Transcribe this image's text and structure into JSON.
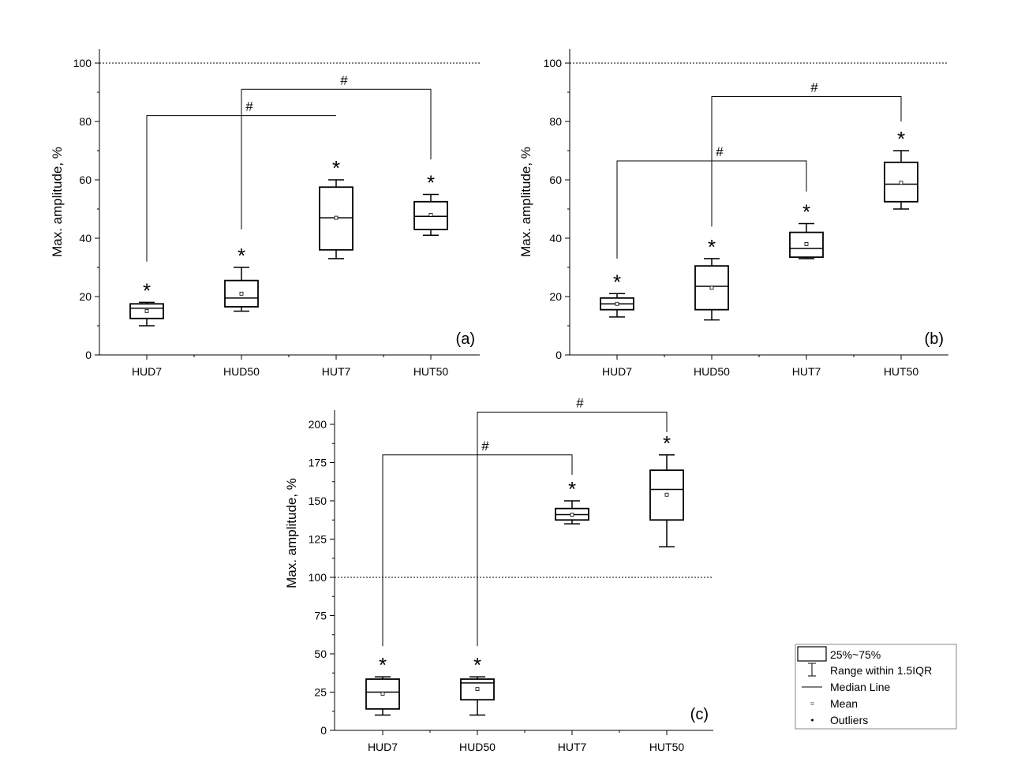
{
  "chart_data": [
    {
      "type": "box",
      "panel_label": "(a)",
      "ylabel": "Max. amplitude, %",
      "ylim": [
        0,
        100
      ],
      "yticks": [
        0,
        20,
        40,
        60,
        80,
        100
      ],
      "reference_line": 100,
      "categories": [
        "HUD7",
        "HUD50",
        "HUT7",
        "HUT50"
      ],
      "boxes": [
        {
          "category": "HUD7",
          "min": 10,
          "q1": 12.5,
          "median": 16,
          "q3": 17.5,
          "max": 18,
          "mean": 15,
          "star": "*"
        },
        {
          "category": "HUD50",
          "min": 15,
          "q1": 16.5,
          "median": 19.5,
          "q3": 25.5,
          "max": 30,
          "mean": 21,
          "star": "*"
        },
        {
          "category": "HUT7",
          "min": 33,
          "q1": 36,
          "median": 47,
          "q3": 57.5,
          "max": 60,
          "mean": 47,
          "star": "*"
        },
        {
          "category": "HUT50",
          "min": 41,
          "q1": 43,
          "median": 47.5,
          "q3": 52.5,
          "max": 55,
          "mean": 48,
          "star": "*"
        }
      ],
      "brackets": [
        {
          "from": "HUD7",
          "to": "HUT7",
          "y": 82,
          "from_y": 32,
          "to_y": 82,
          "label": "#"
        },
        {
          "from": "HUD50",
          "to": "HUT50",
          "y": 91,
          "from_y": 43,
          "to_y": 67,
          "label": "#"
        }
      ]
    },
    {
      "type": "box",
      "panel_label": "(b)",
      "ylabel": "Max. amplitude, %",
      "ylim": [
        0,
        100
      ],
      "yticks": [
        0,
        20,
        40,
        60,
        80,
        100
      ],
      "reference_line": 100,
      "categories": [
        "HUD7",
        "HUD50",
        "HUT7",
        "HUT50"
      ],
      "boxes": [
        {
          "category": "HUD7",
          "min": 13,
          "q1": 15.5,
          "median": 17.5,
          "q3": 19.5,
          "max": 21,
          "mean": 17.5,
          "star": "*"
        },
        {
          "category": "HUD50",
          "min": 12,
          "q1": 15.5,
          "median": 23.5,
          "q3": 30.5,
          "max": 33,
          "mean": 23,
          "star": "*"
        },
        {
          "category": "HUT7",
          "min": 33,
          "q1": 33.5,
          "median": 36.5,
          "q3": 42,
          "max": 45,
          "mean": 38,
          "star": "*"
        },
        {
          "category": "HUT50",
          "min": 50,
          "q1": 52.5,
          "median": 58.5,
          "q3": 66,
          "max": 70,
          "mean": 59,
          "star": "*"
        }
      ],
      "brackets": [
        {
          "from": "HUD7",
          "to": "HUT7",
          "y": 66.5,
          "from_y": 33,
          "to_y": 56,
          "label": "#"
        },
        {
          "from": "HUD50",
          "to": "HUT50",
          "y": 88.5,
          "from_y": 44,
          "to_y": 80,
          "label": "#"
        }
      ]
    },
    {
      "type": "box",
      "panel_label": "(c)",
      "ylabel": "Max. amplitude, %",
      "ylim": [
        0,
        200
      ],
      "yticks": [
        0,
        25,
        50,
        75,
        100,
        125,
        150,
        175,
        200
      ],
      "reference_line": 100,
      "categories": [
        "HUD7",
        "HUD50",
        "HUT7",
        "HUT50"
      ],
      "boxes": [
        {
          "category": "HUD7",
          "min": 10,
          "q1": 14,
          "median": 25,
          "q3": 33.5,
          "max": 35,
          "mean": 24,
          "star": "*"
        },
        {
          "category": "HUD50",
          "min": 10,
          "q1": 20,
          "median": 31,
          "q3": 33.5,
          "max": 35,
          "mean": 27,
          "star": "*"
        },
        {
          "category": "HUT7",
          "min": 135,
          "q1": 137.5,
          "median": 141,
          "q3": 145,
          "max": 150,
          "mean": 141,
          "star": "*"
        },
        {
          "category": "HUT50",
          "min": 120,
          "q1": 137.5,
          "median": 157.5,
          "q3": 170,
          "max": 180,
          "mean": 154,
          "star": "*"
        }
      ],
      "brackets": [
        {
          "from": "HUD7",
          "to": "HUT7",
          "y": 180,
          "from_y": 55,
          "to_y": 167,
          "label": "#"
        },
        {
          "from": "HUD50",
          "to": "HUT50",
          "y": 208,
          "from_y": 55,
          "to_y": 195,
          "label": "#"
        }
      ]
    }
  ],
  "legend": {
    "position": "bottom-right",
    "items": [
      {
        "symbol": "box",
        "label": "25%~75%"
      },
      {
        "symbol": "whisker",
        "label": "Range within 1.5IQR"
      },
      {
        "symbol": "median",
        "label": "Median Line"
      },
      {
        "symbol": "mean",
        "label": "Mean"
      },
      {
        "symbol": "outlier",
        "label": "Outliers"
      }
    ]
  }
}
